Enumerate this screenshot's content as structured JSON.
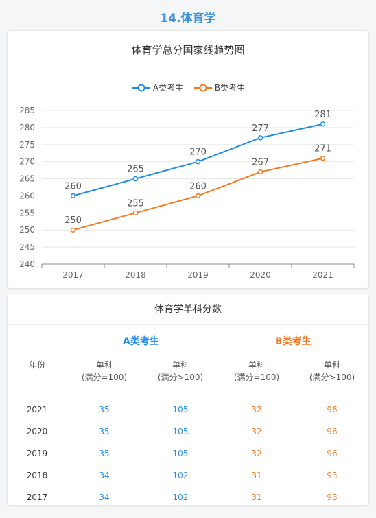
{
  "page_title": "14.体育学",
  "chart_card": {
    "title": "体育学总分国家线趋势图"
  },
  "chart_data": {
    "type": "line",
    "title": "体育学总分国家线趋势图",
    "categories": [
      "2017",
      "2018",
      "2019",
      "2020",
      "2021"
    ],
    "series": [
      {
        "name": "A类考生",
        "color": "#1e8be8",
        "values": [
          260,
          265,
          270,
          277,
          281
        ]
      },
      {
        "name": "B类考生",
        "color": "#f5781f",
        "values": [
          250,
          255,
          260,
          267,
          271
        ]
      }
    ],
    "ylim": [
      240,
      285
    ],
    "yticks": [
      240,
      245,
      250,
      255,
      260,
      265,
      270,
      275,
      280,
      285
    ],
    "grid": true,
    "legend": "top-center",
    "data_labels": true
  },
  "table_card": {
    "title": "体育学单科分数",
    "group_a": "A类考生",
    "group_b": "B类考生",
    "columns": [
      "年份",
      "单科",
      "(满分=100)",
      "单科",
      "(满分>100)",
      "单科",
      "(满分=100)",
      "单科",
      "(满分>100)"
    ],
    "rows": [
      {
        "year": "2021",
        "a100": "35",
        "aover": "105",
        "b100": "32",
        "bover": "96"
      },
      {
        "year": "2020",
        "a100": "35",
        "aover": "105",
        "b100": "32",
        "bover": "96"
      },
      {
        "year": "2019",
        "a100": "35",
        "aover": "105",
        "b100": "32",
        "bover": "96"
      },
      {
        "year": "2018",
        "a100": "34",
        "aover": "102",
        "b100": "31",
        "bover": "93"
      },
      {
        "year": "2017",
        "a100": "34",
        "aover": "102",
        "b100": "31",
        "bover": "93"
      }
    ],
    "colors": {
      "a": "#2a8be8",
      "b": "#f07a2a"
    }
  }
}
